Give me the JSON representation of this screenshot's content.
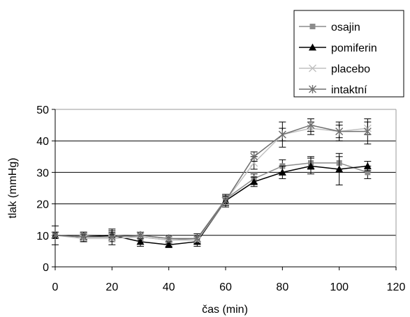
{
  "chart_data": {
    "type": "line",
    "xlabel": "čas (min)",
    "ylabel": "tlak (mmHg)",
    "xlim": [
      0,
      120
    ],
    "ylim": [
      0,
      50
    ],
    "xticks": [
      0,
      20,
      40,
      60,
      80,
      100,
      120
    ],
    "yticks": [
      0,
      10,
      20,
      30,
      40,
      50
    ],
    "grid": "horizontal",
    "legend_position": "top-right",
    "x": [
      0,
      10,
      20,
      30,
      40,
      50,
      60,
      70,
      80,
      90,
      100,
      110
    ],
    "series": [
      {
        "name": "osajin",
        "marker": "square",
        "color": "#8c8c8c",
        "values": [
          10,
          9.5,
          10,
          9.5,
          8.5,
          9,
          21.5,
          28,
          32,
          33,
          33,
          30
        ],
        "errors": [
          1,
          1,
          1,
          1,
          1,
          1,
          1.5,
          1.5,
          2,
          2,
          2,
          2
        ]
      },
      {
        "name": "pomiferin",
        "marker": "triangle",
        "color": "#000000",
        "values": [
          10,
          9.5,
          10,
          8,
          7,
          8,
          21,
          27,
          30,
          32,
          31,
          32
        ],
        "errors": [
          1,
          1.5,
          1.5,
          1.5,
          0.5,
          1.5,
          1.5,
          1.5,
          2,
          2.5,
          5,
          1.5
        ]
      },
      {
        "name": "placebo",
        "marker": "x",
        "color": "#c0c0c0",
        "values": [
          10,
          9,
          9,
          9.5,
          8.5,
          8.5,
          21,
          33,
          42,
          44,
          43,
          44
        ],
        "errors": [
          1,
          1,
          1,
          1,
          1,
          1,
          1.5,
          2,
          2,
          2,
          2,
          2
        ]
      },
      {
        "name": "intaktní",
        "marker": "star",
        "color": "#6e6e6e",
        "values": [
          10,
          9.5,
          9.5,
          10,
          9,
          9,
          21,
          35,
          42,
          45,
          43,
          43
        ],
        "errors": [
          3,
          1.5,
          2.5,
          1,
          1,
          1.5,
          2,
          1.5,
          4,
          2,
          3,
          4
        ]
      }
    ]
  }
}
